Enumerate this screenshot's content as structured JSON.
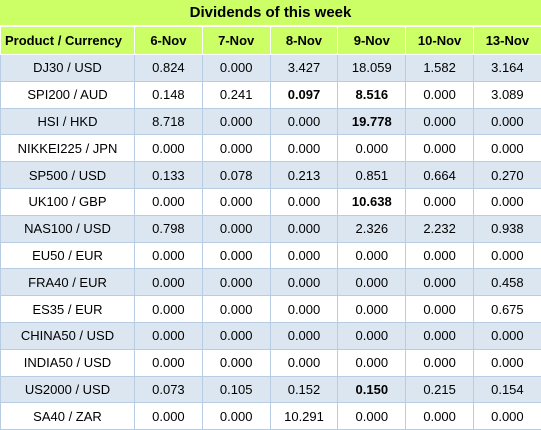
{
  "title": "Dividends of this week",
  "columns": [
    "Product / Currency",
    "6-Nov",
    "7-Nov",
    "8-Nov",
    "9-Nov",
    "10-Nov",
    "13-Nov"
  ],
  "rows": [
    {
      "product": "DJ30 / USD",
      "values": [
        "0.824",
        "0.000",
        "3.427",
        "18.059",
        "1.582",
        "3.164"
      ],
      "bold": []
    },
    {
      "product": "SPI200 / AUD",
      "values": [
        "0.148",
        "0.241",
        "0.097",
        "8.516",
        "0.000",
        "3.089"
      ],
      "bold": [
        2,
        3
      ]
    },
    {
      "product": "HSI / HKD",
      "values": [
        "8.718",
        "0.000",
        "0.000",
        "19.778",
        "0.000",
        "0.000"
      ],
      "bold": [
        3
      ]
    },
    {
      "product": "NIKKEI225 / JPN",
      "values": [
        "0.000",
        "0.000",
        "0.000",
        "0.000",
        "0.000",
        "0.000"
      ],
      "bold": []
    },
    {
      "product": "SP500 / USD",
      "values": [
        "0.133",
        "0.078",
        "0.213",
        "0.851",
        "0.664",
        "0.270"
      ],
      "bold": []
    },
    {
      "product": "UK100 / GBP",
      "values": [
        "0.000",
        "0.000",
        "0.000",
        "10.638",
        "0.000",
        "0.000"
      ],
      "bold": [
        3
      ]
    },
    {
      "product": "NAS100 / USD",
      "values": [
        "0.798",
        "0.000",
        "0.000",
        "2.326",
        "2.232",
        "0.938"
      ],
      "bold": []
    },
    {
      "product": "EU50 / EUR",
      "values": [
        "0.000",
        "0.000",
        "0.000",
        "0.000",
        "0.000",
        "0.000"
      ],
      "bold": []
    },
    {
      "product": "FRA40 / EUR",
      "values": [
        "0.000",
        "0.000",
        "0.000",
        "0.000",
        "0.000",
        "0.458"
      ],
      "bold": []
    },
    {
      "product": "ES35 / EUR",
      "values": [
        "0.000",
        "0.000",
        "0.000",
        "0.000",
        "0.000",
        "0.675"
      ],
      "bold": []
    },
    {
      "product": "CHINA50 / USD",
      "values": [
        "0.000",
        "0.000",
        "0.000",
        "0.000",
        "0.000",
        "0.000"
      ],
      "bold": []
    },
    {
      "product": "INDIA50 / USD",
      "values": [
        "0.000",
        "0.000",
        "0.000",
        "0.000",
        "0.000",
        "0.000"
      ],
      "bold": []
    },
    {
      "product": "US2000 / USD",
      "values": [
        "0.073",
        "0.105",
        "0.152",
        "0.150",
        "0.215",
        "0.154"
      ],
      "bold": [
        3
      ]
    },
    {
      "product": "SA40 / ZAR",
      "values": [
        "0.000",
        "0.000",
        "10.291",
        "0.000",
        "0.000",
        "0.000"
      ],
      "bold": []
    }
  ],
  "colors": {
    "header_bg": "#ccff66",
    "row_odd_bg": "#dce6f1",
    "row_even_bg": "#ffffff",
    "border": "#b8cce4"
  }
}
